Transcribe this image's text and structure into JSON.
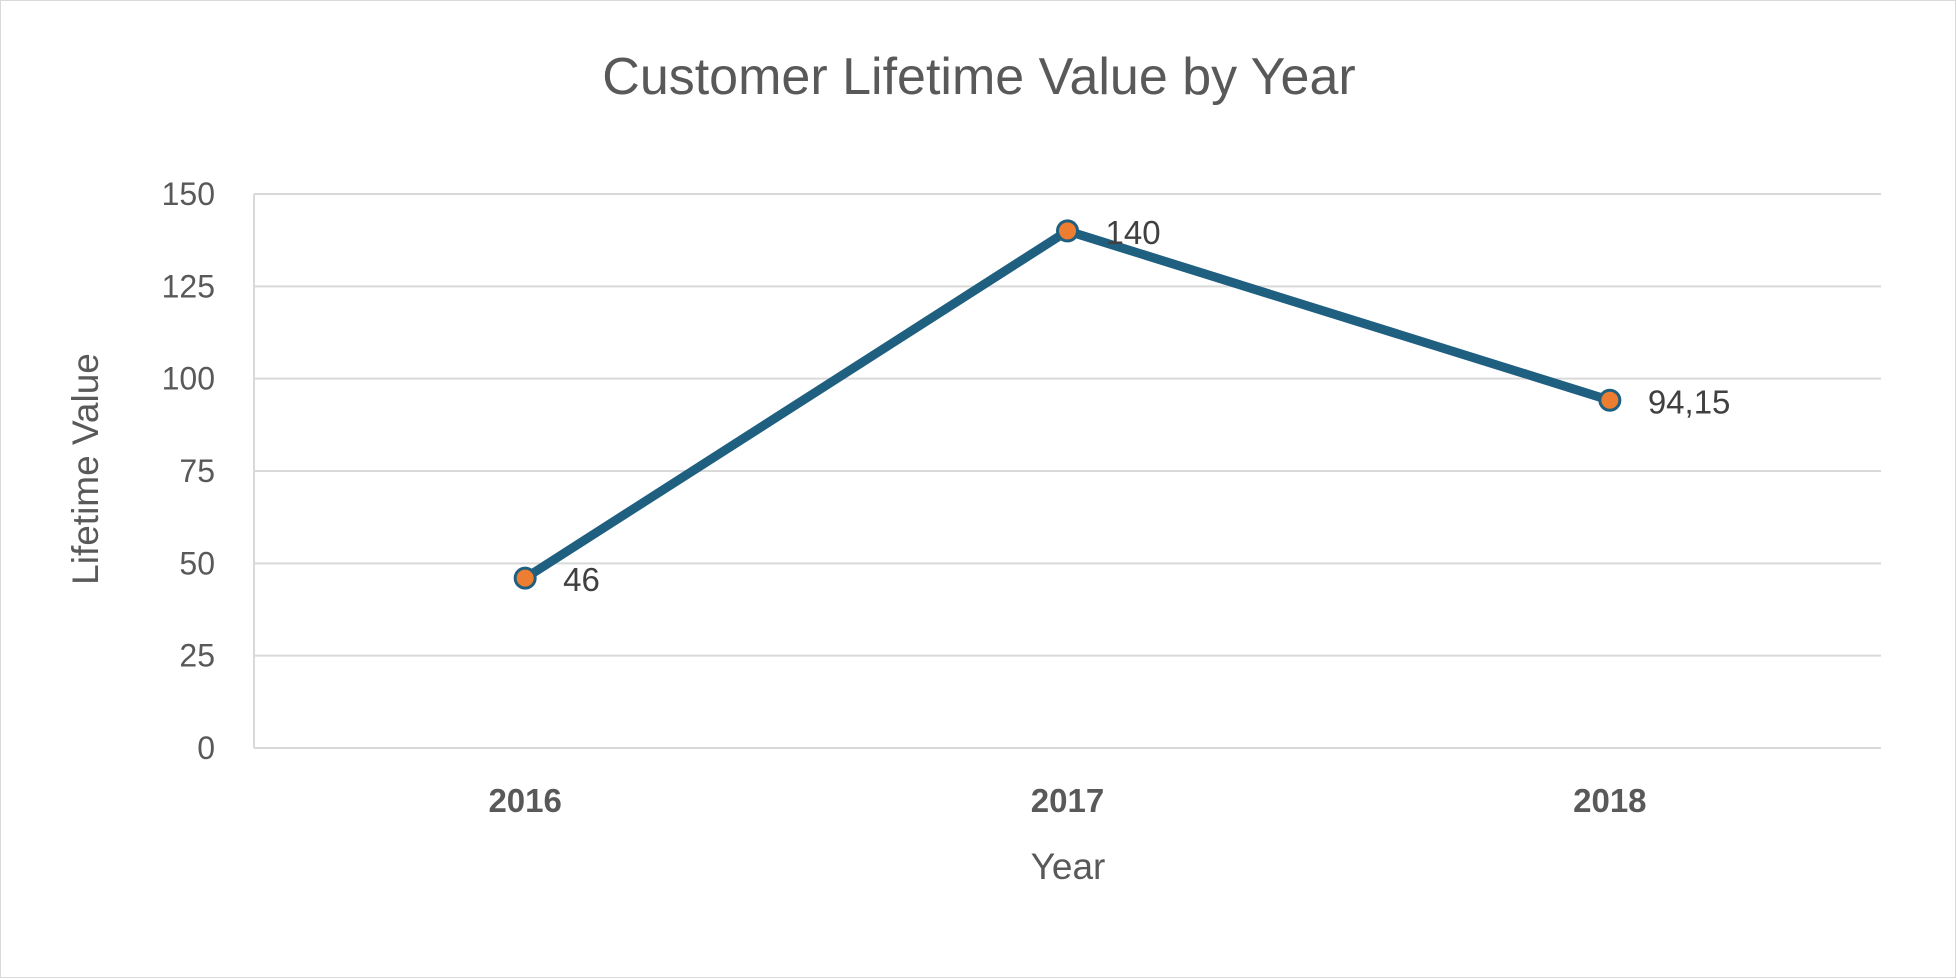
{
  "chart_data": {
    "type": "line",
    "title": "Customer Lifetime Value by Year",
    "xlabel": "Year",
    "ylabel": "Lifetime Value",
    "categories": [
      "2016",
      "2017",
      "2018"
    ],
    "series": [
      {
        "values": [
          46,
          140,
          94.15
        ],
        "data_labels": [
          "46",
          "140",
          "94,15"
        ],
        "line_color": "#1f5f7f",
        "marker_fill": "#ed7d31",
        "marker_edge": "#1f5f7f"
      }
    ],
    "ylim": [
      0,
      150
    ],
    "yticks": [
      0,
      25,
      50,
      75,
      100,
      125,
      150
    ],
    "ytick_labels": [
      "0",
      "25",
      "50",
      "75",
      "100",
      "125",
      "150"
    ],
    "grid": true,
    "legend": "none",
    "gridline_color": "#d9d9d9",
    "text_color": "#595959"
  }
}
